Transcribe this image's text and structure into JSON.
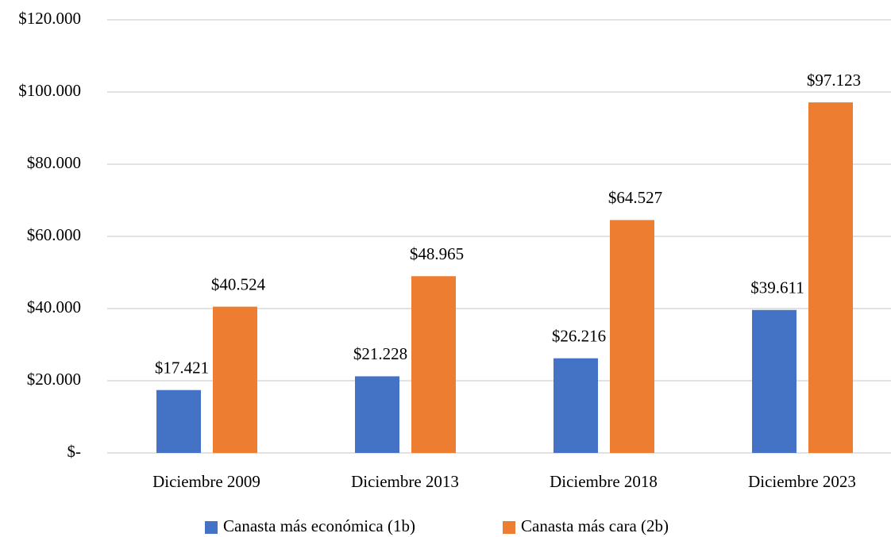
{
  "chart_data": {
    "type": "bar",
    "categories": [
      "Diciembre 2009",
      "Diciembre 2013",
      "Diciembre 2018",
      "Diciembre 2023"
    ],
    "series": [
      {
        "name": "Canasta más económica (1b)",
        "color": "#4472c4",
        "values": [
          17421,
          21228,
          26216,
          39611
        ],
        "value_labels": [
          "$17.421",
          "$21.228",
          "$26.216",
          "$39.611"
        ]
      },
      {
        "name": "Canasta más cara (2b)",
        "color": "#ed7d31",
        "values": [
          40524,
          48965,
          64527,
          97123
        ],
        "value_labels": [
          "$40.524",
          "$48.965",
          "$64.527",
          "$97.123"
        ]
      }
    ],
    "ylim": [
      0,
      120000
    ],
    "yticks": [
      {
        "value": 0,
        "label": "$-"
      },
      {
        "value": 20000,
        "label": "$20.000"
      },
      {
        "value": 40000,
        "label": "$40.000"
      },
      {
        "value": 60000,
        "label": "$60.000"
      },
      {
        "value": 80000,
        "label": "$80.000"
      },
      {
        "value": 100000,
        "label": "$100.000"
      },
      {
        "value": 120000,
        "label": "$120.000"
      }
    ],
    "grid": true,
    "legend": "bottom"
  }
}
